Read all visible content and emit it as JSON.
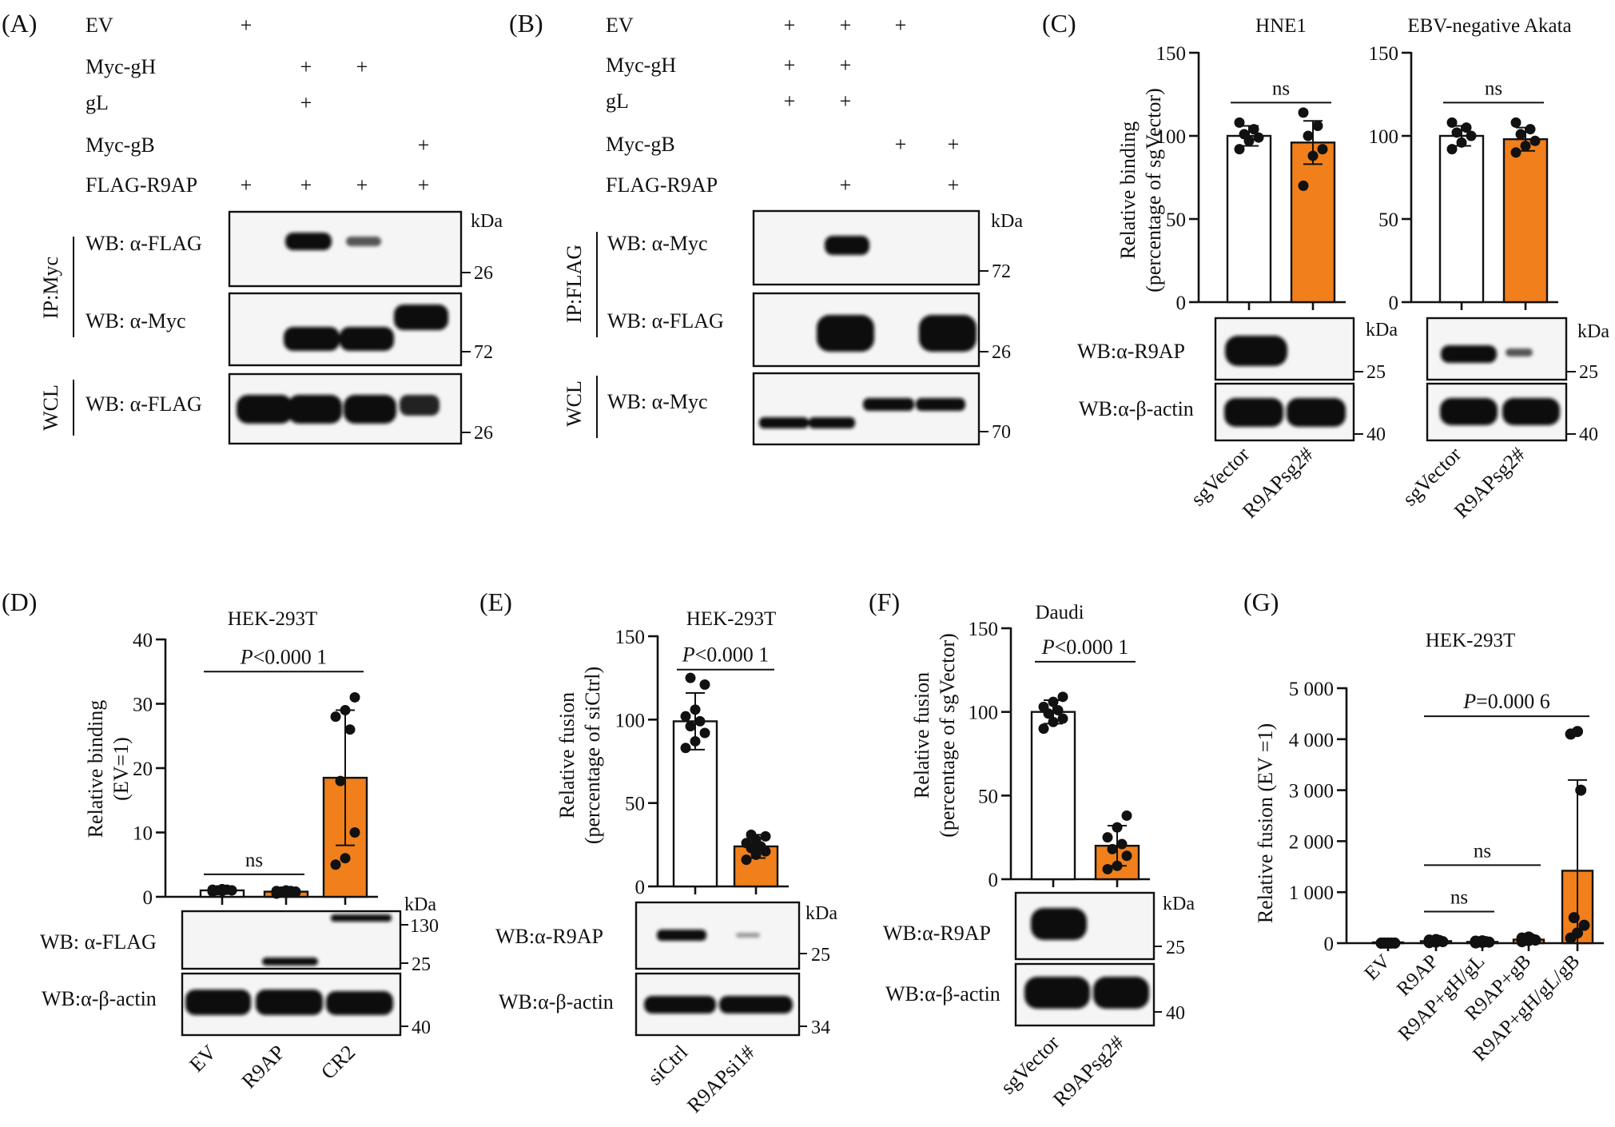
{
  "colors": {
    "control_fill": "#ffffff",
    "treated_fill": "#f07f1c",
    "point": "#111111",
    "band": "#0c0c0c"
  },
  "panelA": {
    "letter": "(A)",
    "rows": [
      "EV",
      "Myc-gH",
      "gL",
      "Myc-gB",
      "FLAG-R9AP"
    ],
    "signs": [
      [
        "+",
        "",
        "",
        ""
      ],
      [
        "",
        "+",
        "+",
        ""
      ],
      [
        "",
        "+",
        "",
        ""
      ],
      [
        "",
        "",
        "",
        "+"
      ],
      [
        "+",
        "+",
        "+",
        "+"
      ]
    ],
    "ip_label": "IP:Myc",
    "wcl_label": "WCL",
    "blots": [
      "WB: α-FLAG",
      "WB: α-Myc",
      "WB: α-FLAG"
    ],
    "kda": "kDa",
    "markers": [
      "26",
      "72",
      "26"
    ]
  },
  "panelB": {
    "letter": "(B)",
    "rows": [
      "EV",
      "Myc-gH",
      "gL",
      "Myc-gB",
      "FLAG-R9AP"
    ],
    "signs": [
      [
        "+",
        "+",
        "+",
        ""
      ],
      [
        "+",
        "+",
        "",
        ""
      ],
      [
        "+",
        "+",
        "",
        ""
      ],
      [
        "",
        "",
        "+",
        "+"
      ],
      [
        "",
        "+",
        "",
        "+"
      ]
    ],
    "ip_label": "IP:FLAG",
    "wcl_label": "WCL",
    "blots": [
      "WB: α-Myc",
      "WB: α-FLAG",
      "WB: α-Myc"
    ],
    "kda": "kDa",
    "markers": [
      "72",
      "26",
      "70"
    ]
  },
  "panelC": {
    "letter": "(C)",
    "ylabel_1": "Relative binding",
    "ylabel_2": "(percentage of sgVector)",
    "blot_labels": [
      "WB:α-R9AP",
      "WB:α-β-actin"
    ],
    "kda": "kDa",
    "markers": [
      "25",
      "40"
    ],
    "x_labels": [
      "sgVector",
      "R9APsg2#"
    ]
  },
  "panelD": {
    "letter": "(D)",
    "ylabel_1": "Relative binding",
    "ylabel_2": "(EV=1)",
    "blot_labels": [
      "WB: α-FLAG",
      "WB:α-β-actin"
    ],
    "kda": "kDa",
    "markers": [
      "130",
      "25",
      "40"
    ],
    "x_labels": [
      "EV",
      "R9AP",
      "CR2"
    ]
  },
  "panelE": {
    "letter": "(E)",
    "ylabel_1": "Relative fusion",
    "ylabel_2": "(percentage of siCtrl)",
    "blot_labels": [
      "WB:α-R9AP",
      "WB:α-β-actin"
    ],
    "kda": "kDa",
    "markers": [
      "25",
      "34"
    ],
    "x_labels": [
      "siCtrl",
      "R9APsi1#"
    ]
  },
  "panelF": {
    "letter": "(F)",
    "ylabel_1": "Relative fusion",
    "ylabel_2": "(percentage of sgVector)",
    "blot_labels": [
      "WB:α-R9AP",
      "WB:α-β-actin"
    ],
    "kda": "kDa",
    "markers": [
      "25",
      "40"
    ],
    "x_labels": [
      "sgVector",
      "R9APsg2#"
    ]
  },
  "panelG": {
    "letter": "(G)",
    "ylabel": "Relative fusion (EV =1)"
  },
  "chart_data": [
    {
      "id": "C1",
      "type": "bar",
      "title": "HNE1",
      "categories": [
        "sgVector",
        "R9APsg2#"
      ],
      "values": [
        100,
        96
      ],
      "errors": [
        6,
        13
      ],
      "points": [
        [
          92,
          97,
          99,
          101,
          104,
          108
        ],
        [
          70,
          88,
          92,
          100,
          106,
          114
        ]
      ],
      "ylim": [
        0,
        150
      ],
      "yticks": [
        "0",
        "50",
        "100",
        "150"
      ],
      "annotations": [
        {
          "text": "ns",
          "from": 0,
          "to": 1,
          "y": 120
        }
      ]
    },
    {
      "id": "C2",
      "type": "bar",
      "title": "EBV-negative Akata",
      "categories": [
        "sgVector",
        "R9APsg2#"
      ],
      "values": [
        100,
        98
      ],
      "errors": [
        6,
        7
      ],
      "points": [
        [
          92,
          96,
          100,
          102,
          105,
          108
        ],
        [
          90,
          94,
          97,
          101,
          104,
          108
        ]
      ],
      "ylim": [
        0,
        150
      ],
      "yticks": [
        "0",
        "50",
        "100",
        "150"
      ],
      "annotations": [
        {
          "text": "ns",
          "from": 0,
          "to": 1,
          "y": 120
        }
      ]
    },
    {
      "id": "D",
      "type": "bar",
      "title": "HEK-293T",
      "categories": [
        "EV",
        "R9AP",
        "CR2"
      ],
      "values": [
        1,
        0.8,
        18.5
      ],
      "errors": [
        0.2,
        0.3,
        10.5
      ],
      "points": [
        [
          0.8,
          0.9,
          1.0,
          1.0,
          1.1,
          1.1,
          1.2,
          1.0
        ],
        [
          0.5,
          0.6,
          0.7,
          0.8,
          0.9,
          0.9,
          1.0,
          0.8
        ],
        [
          5,
          6,
          10,
          18,
          26,
          28,
          29,
          31
        ]
      ],
      "ylim": [
        0,
        40
      ],
      "yticks": [
        "0",
        "10",
        "20",
        "30",
        "40"
      ],
      "annotations": [
        {
          "text": "ns",
          "from": 0,
          "to": 1,
          "y": 3.5
        },
        {
          "text": "P<0.000 1",
          "from": 0,
          "to": 2,
          "y": 35
        }
      ]
    },
    {
      "id": "E",
      "type": "bar",
      "title": "HEK-293T",
      "categories": [
        "siCtrl",
        "R9APsi1#"
      ],
      "values": [
        99,
        24
      ],
      "errors": [
        17,
        7
      ],
      "points": [
        [
          83,
          87,
          92,
          96,
          99,
          102,
          106,
          121,
          125
        ],
        [
          16,
          19,
          21,
          23,
          24,
          26,
          28,
          30,
          31
        ]
      ],
      "ylim": [
        0,
        150
      ],
      "yticks": [
        "0",
        "50",
        "100",
        "150"
      ],
      "annotations": [
        {
          "text": "P<0.000 1",
          "from": 0,
          "to": 1,
          "y": 130
        }
      ]
    },
    {
      "id": "F",
      "type": "bar",
      "title": "Daudi",
      "categories": [
        "sgVector",
        "R9APsg2#"
      ],
      "values": [
        100,
        20
      ],
      "errors": [
        7,
        12
      ],
      "points": [
        [
          90,
          94,
          96,
          99,
          101,
          103,
          106,
          109
        ],
        [
          6,
          8,
          14,
          18,
          21,
          25,
          31,
          38
        ]
      ],
      "ylim": [
        0,
        150
      ],
      "yticks": [
        "0",
        "50",
        "100",
        "150"
      ],
      "annotations": [
        {
          "text": "P<0.000 1",
          "from": 0,
          "to": 1,
          "y": 130
        }
      ]
    },
    {
      "id": "G",
      "type": "bar",
      "title": "HEK-293T",
      "categories": [
        "EV",
        "R9AP",
        "R9AP+gH/gL",
        "R9AP+gB",
        "R9AP+gH/gL/gB"
      ],
      "values": [
        1,
        40,
        25,
        70,
        1420
      ],
      "errors": [
        0,
        20,
        15,
        30,
        1780
      ],
      "points": [
        [
          0,
          0,
          1,
          1,
          1,
          2,
          2
        ],
        [
          10,
          20,
          30,
          40,
          50,
          60,
          70
        ],
        [
          5,
          15,
          20,
          25,
          30,
          40,
          45
        ],
        [
          30,
          50,
          60,
          70,
          80,
          100,
          120
        ],
        [
          100,
          200,
          350,
          500,
          3000,
          4100,
          4150
        ]
      ],
      "ylim": [
        0,
        5000
      ],
      "yticks": [
        "0",
        "1 000",
        "2 000",
        "3 000",
        "4 000",
        "5 000"
      ],
      "annotations": [
        {
          "text": "ns",
          "from": 1,
          "to": 2,
          "y": 620
        },
        {
          "text": "ns",
          "from": 1,
          "to": 3,
          "y": 1530
        },
        {
          "text": "P=0.000 6",
          "from": 1,
          "to": 4,
          "y": 4450
        }
      ]
    }
  ]
}
